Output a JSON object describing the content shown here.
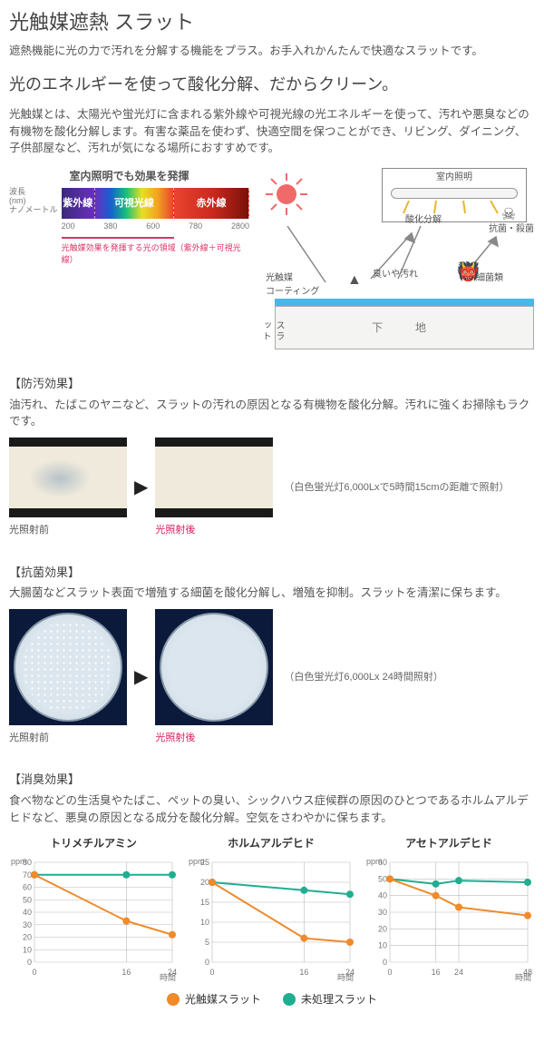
{
  "title": "光触媒遮熱 スラット",
  "lead": "遮熱機能に光の力で汚れを分解する機能をプラス。お手入れかんたんで快適なスラットです。",
  "subtitle": "光のエネルギーを使って酸化分解、だからクリーン。",
  "body": "光触媒とは、太陽光や蛍光灯に含まれる紫外線や可視光線の光エネルギーを使って、汚れや悪臭などの有機物を酸化分解します。有害な薬品を使わず、快適空間を保つことができ、リビング、ダイニング、子供部屋など、汚れが気になる場所におすすめです。",
  "spectrum": {
    "title": "室内照明でも効果を発揮",
    "axis_label_top": "波長\n(nm)\nナノメートル",
    "segments": [
      {
        "label": "紫外線",
        "width_pct": 18,
        "bg": "linear-gradient(90deg,#3a2a7a,#6a2fbf)"
      },
      {
        "label": "可視光線",
        "width_pct": 42,
        "bg": "linear-gradient(90deg,#6a2fbf,#1560d0,#17c07a,#e8df22,#f2a321,#e8442e)"
      },
      {
        "label": "赤外線",
        "width_pct": 40,
        "bg": "linear-gradient(90deg,#e8442e,#cc2a1f,#7a110a)"
      }
    ],
    "ticks": [
      "200",
      "380",
      "600",
      "780",
      "2800"
    ],
    "note": "光触媒効果を発揮する光の領域（紫外線＋可視光線）"
  },
  "mechanism": {
    "indoor_light": "室内照明",
    "oxidative": "酸化分解",
    "antibac": "抗菌・殺菌",
    "dirt": "臭いや汚れ",
    "bacteria": "細菌類",
    "coating": "光触媒\nコーティング",
    "base": "下　地",
    "slat": "スラット",
    "sun_color": "#f06a6a",
    "coating_color": "#49b7e8"
  },
  "antisoil": {
    "label": "【防汚効果】",
    "text": "油汚れ、たばこのヤニなど、スラットの汚れの原因となる有機物を酸化分解。汚れに強くお掃除もラクです。",
    "before": "光照射前",
    "after": "光照射後",
    "cond": "（白色蛍光灯6,000Lxで5時間15cmの距離で照射）"
  },
  "antibac": {
    "label": "【抗菌効果】",
    "text": "大腸菌などスラット表面で増殖する細菌を酸化分解し、増殖を抑制。スラットを清潔に保ちます。",
    "before": "光照射前",
    "after": "光照射後",
    "cond": "（白色蛍光灯6,000Lx 24時間照射）"
  },
  "deodor": {
    "label": "【消臭効果】",
    "text": "食べ物などの生活臭やたばこ、ペットの臭い、シックハウス症候群の原因のひとつであるホルムアルデヒドなど、悪臭の原因となる成分を酸化分解。空気をさわやかに保ちます。"
  },
  "charts": [
    {
      "title": "トリメチルアミン",
      "y_max": 80,
      "y_step": 10,
      "x_labels": [
        "0",
        "16",
        "24"
      ],
      "x_unit": "時間",
      "series": {
        "treated": {
          "color": "#f08a2a",
          "points": [
            [
              0,
              70
            ],
            [
              16,
              33
            ],
            [
              24,
              22
            ]
          ]
        },
        "untreated": {
          "color": "#1fae8f",
          "points": [
            [
              0,
              70
            ],
            [
              16,
              70
            ],
            [
              24,
              70
            ]
          ]
        }
      }
    },
    {
      "title": "ホルムアルデヒド",
      "y_max": 25,
      "y_step": 5,
      "x_labels": [
        "0",
        "16",
        "24"
      ],
      "x_unit": "時間",
      "series": {
        "treated": {
          "color": "#f08a2a",
          "points": [
            [
              0,
              20
            ],
            [
              16,
              6
            ],
            [
              24,
              5
            ]
          ]
        },
        "untreated": {
          "color": "#1fae8f",
          "points": [
            [
              0,
              20
            ],
            [
              16,
              18
            ],
            [
              24,
              17
            ]
          ]
        }
      }
    },
    {
      "title": "アセトアルデヒド",
      "y_max": 60,
      "y_step": 10,
      "x_labels": [
        "0",
        "16",
        "24",
        "48"
      ],
      "x_unit": "時間",
      "series": {
        "treated": {
          "color": "#f08a2a",
          "points": [
            [
              0,
              50
            ],
            [
              16,
              40
            ],
            [
              24,
              33
            ],
            [
              48,
              28
            ]
          ]
        },
        "untreated": {
          "color": "#1fae8f",
          "points": [
            [
              0,
              50
            ],
            [
              16,
              47
            ],
            [
              24,
              49
            ],
            [
              48,
              48
            ]
          ]
        }
      }
    }
  ],
  "legend": {
    "treated": "光触媒スラット",
    "untreated": "未処理スラット",
    "treated_color": "#f08a2a",
    "untreated_color": "#1fae8f"
  }
}
